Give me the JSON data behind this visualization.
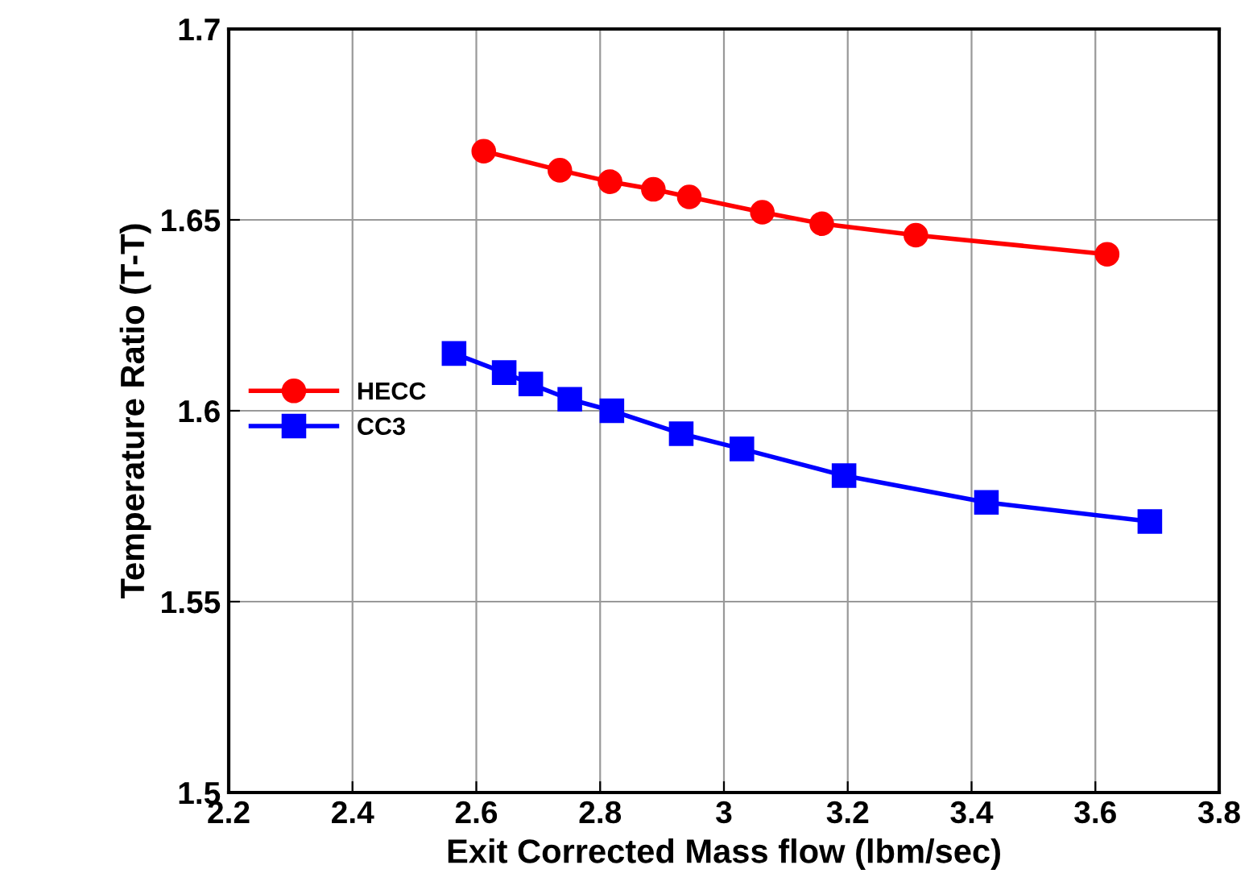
{
  "chart_data": {
    "type": "line",
    "xlabel": "Exit Corrected Mass flow (lbm/sec)",
    "ylabel": "Temperature Ratio (T-T)",
    "series": [
      {
        "name": "HECC",
        "color": "#ff0000",
        "marker": "circle",
        "x": [
          2.612,
          2.735,
          2.816,
          2.886,
          2.944,
          3.062,
          3.158,
          3.31,
          3.619
        ],
        "values": [
          1.668,
          1.663,
          1.66,
          1.658,
          1.656,
          1.652,
          1.649,
          1.646,
          1.641
        ]
      },
      {
        "name": "CC3",
        "color": "#0000ff",
        "marker": "square",
        "x": [
          2.564,
          2.645,
          2.688,
          2.751,
          2.819,
          2.931,
          3.029,
          3.194,
          3.424,
          3.688
        ],
        "values": [
          1.615,
          1.61,
          1.607,
          1.603,
          1.6,
          1.594,
          1.59,
          1.583,
          1.576,
          1.571
        ]
      }
    ],
    "xlim": [
      2.2,
      3.8
    ],
    "xticks": [
      2.2,
      2.4,
      2.6,
      2.8,
      3,
      3.2,
      3.4,
      3.6,
      3.8
    ],
    "ylim": [
      1.5,
      1.7
    ],
    "yticks": [
      1.5,
      1.55,
      1.6,
      1.65,
      1.7
    ],
    "grid": true,
    "legend": "center left",
    "line_style": "solid"
  }
}
